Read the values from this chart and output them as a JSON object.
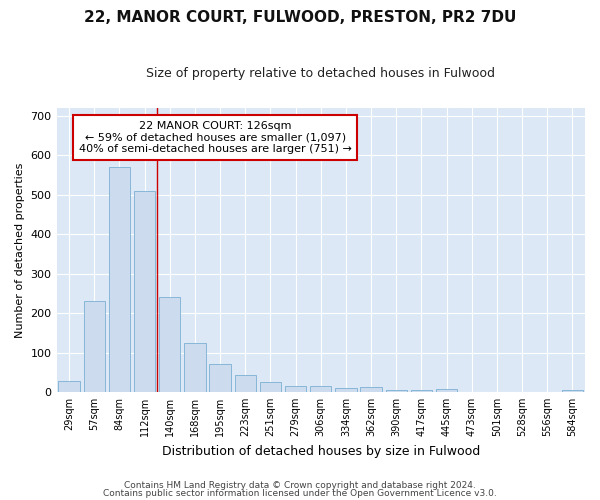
{
  "title1": "22, MANOR COURT, FULWOOD, PRESTON, PR2 7DU",
  "title2": "Size of property relative to detached houses in Fulwood",
  "xlabel": "Distribution of detached houses by size in Fulwood",
  "ylabel": "Number of detached properties",
  "categories": [
    "29sqm",
    "57sqm",
    "84sqm",
    "112sqm",
    "140sqm",
    "168sqm",
    "195sqm",
    "223sqm",
    "251sqm",
    "279sqm",
    "306sqm",
    "334sqm",
    "362sqm",
    "390sqm",
    "417sqm",
    "445sqm",
    "473sqm",
    "501sqm",
    "528sqm",
    "556sqm",
    "584sqm"
  ],
  "values": [
    27,
    230,
    570,
    510,
    242,
    125,
    70,
    42,
    26,
    14,
    14,
    10,
    12,
    4,
    4,
    7,
    0,
    0,
    0,
    0,
    5
  ],
  "bar_color": "#ccdcee",
  "bar_edge_color": "#7aafd4",
  "red_line_x": 3.5,
  "annotation_text": "22 MANOR COURT: 126sqm\n← 59% of detached houses are smaller (1,097)\n40% of semi-detached houses are larger (751) →",
  "annotation_box_color": "#ffffff",
  "annotation_box_edge": "#cc0000",
  "footer1": "Contains HM Land Registry data © Crown copyright and database right 2024.",
  "footer2": "Contains public sector information licensed under the Open Government Licence v3.0.",
  "background_color": "#ffffff",
  "plot_bg_color": "#dce8f5",
  "ylim": [
    0,
    720
  ],
  "yticks": [
    0,
    100,
    200,
    300,
    400,
    500,
    600,
    700
  ]
}
